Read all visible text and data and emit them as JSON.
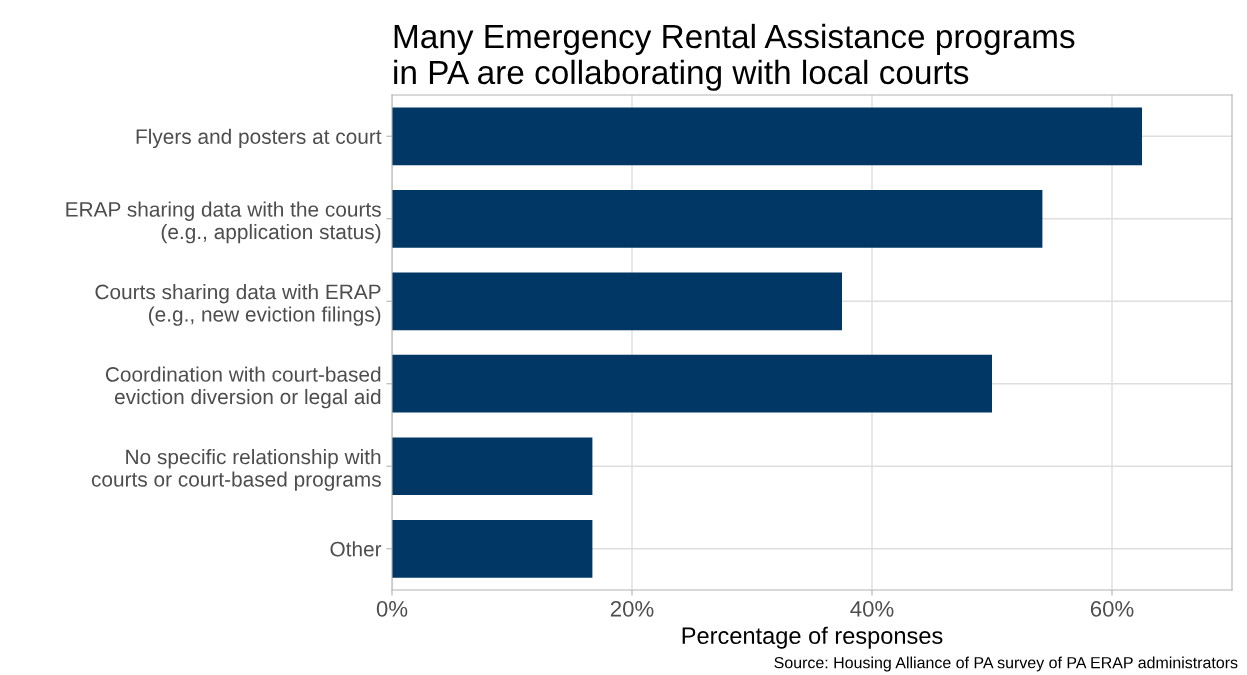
{
  "chart_data": {
    "type": "bar",
    "orientation": "horizontal",
    "title": "Many Emergency Rental Assistance programs\nin PA are collaborating with local courts",
    "xlabel": "Percentage of responses",
    "annotations": [
      "Source: Housing Alliance of PA survey of PA ERAP administrators"
    ],
    "categories": [
      "Flyers and posters at court",
      "ERAP sharing data with the courts\n(e.g., application status)",
      "Courts sharing data with ERAP\n(e.g., new eviction filings)",
      "Coordination with court-based\neviction diversion or legal aid",
      "No specific relationship with\ncourts or court-based programs",
      "Other"
    ],
    "values": [
      62.5,
      54.2,
      37.5,
      50.0,
      16.7,
      16.7
    ],
    "color": "#003764",
    "xlim": [
      0,
      70
    ],
    "xticks": [
      {
        "value": 0,
        "label": "0%"
      },
      {
        "value": 20,
        "label": "20%"
      },
      {
        "value": 40,
        "label": "40%"
      },
      {
        "value": 60,
        "label": "60%"
      }
    ],
    "grid": true
  }
}
